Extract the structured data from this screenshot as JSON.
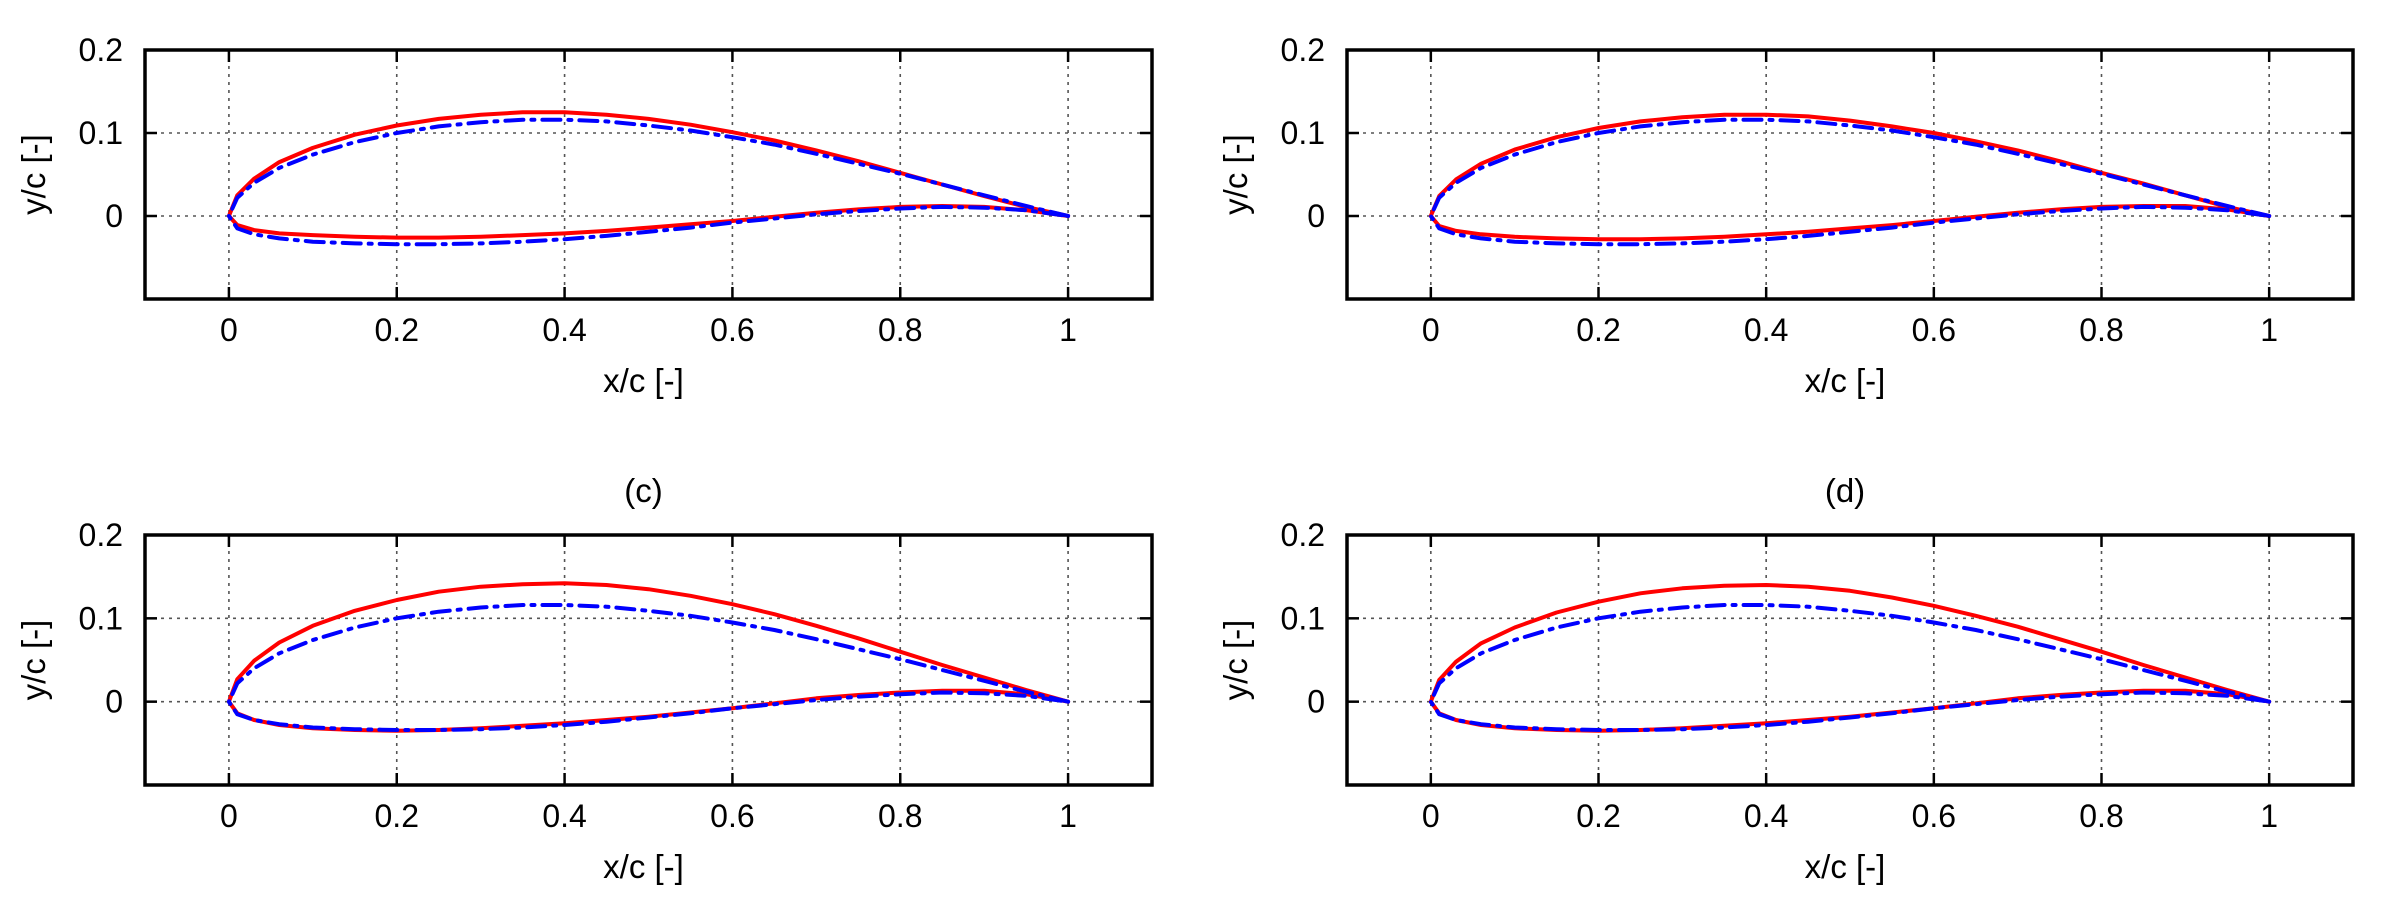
{
  "chart_data": [
    {
      "type": "line",
      "title": "",
      "xlabel": "x/c [-]",
      "ylabel": "y/c [-]",
      "xlim": [
        -0.1,
        1.1
      ],
      "ylim": [
        -0.1,
        0.2
      ],
      "xticks": [
        "0",
        "0.2",
        "0.4",
        "0.6",
        "0.8",
        "1"
      ],
      "yticks": [
        "0",
        "0.1",
        "0.2"
      ],
      "grid": true,
      "series": [
        {
          "color": "#ff0000",
          "style": "solid",
          "upper": {
            "x": [
              0,
              0.01,
              0.03,
              0.06,
              0.1,
              0.15,
              0.2,
              0.25,
              0.3,
              0.35,
              0.4,
              0.45,
              0.5,
              0.55,
              0.6,
              0.65,
              0.7,
              0.75,
              0.8,
              0.85,
              0.9,
              0.95,
              1.0
            ],
            "y": [
              0,
              0.025,
              0.045,
              0.065,
              0.082,
              0.098,
              0.109,
              0.117,
              0.122,
              0.125,
              0.125,
              0.122,
              0.117,
              0.11,
              0.101,
              0.091,
              0.079,
              0.066,
              0.052,
              0.038,
              0.024,
              0.011,
              0.0
            ]
          },
          "lower": {
            "x": [
              0,
              0.01,
              0.03,
              0.06,
              0.1,
              0.15,
              0.2,
              0.25,
              0.3,
              0.35,
              0.4,
              0.45,
              0.5,
              0.55,
              0.6,
              0.65,
              0.7,
              0.75,
              0.8,
              0.85,
              0.9,
              0.95,
              1.0
            ],
            "y": [
              0,
              -0.011,
              -0.017,
              -0.021,
              -0.023,
              -0.025,
              -0.026,
              -0.026,
              -0.025,
              -0.023,
              -0.021,
              -0.018,
              -0.014,
              -0.01,
              -0.006,
              -0.001,
              0.004,
              0.008,
              0.011,
              0.012,
              0.011,
              0.007,
              0.0
            ]
          }
        },
        {
          "color": "#0000ff",
          "style": "dashdot",
          "upper": {
            "x": [
              0,
              0.01,
              0.03,
              0.06,
              0.1,
              0.15,
              0.2,
              0.25,
              0.3,
              0.35,
              0.4,
              0.45,
              0.5,
              0.55,
              0.6,
              0.65,
              0.7,
              0.75,
              0.8,
              0.85,
              0.9,
              0.95,
              1.0
            ],
            "y": [
              0,
              0.022,
              0.04,
              0.058,
              0.074,
              0.089,
              0.1,
              0.108,
              0.113,
              0.116,
              0.116,
              0.114,
              0.109,
              0.103,
              0.095,
              0.086,
              0.075,
              0.063,
              0.051,
              0.038,
              0.025,
              0.012,
              0.0
            ]
          },
          "lower": {
            "x": [
              0,
              0.01,
              0.03,
              0.06,
              0.1,
              0.15,
              0.2,
              0.25,
              0.3,
              0.35,
              0.4,
              0.45,
              0.5,
              0.55,
              0.6,
              0.65,
              0.7,
              0.75,
              0.8,
              0.85,
              0.9,
              0.95,
              1.0
            ],
            "y": [
              0,
              -0.015,
              -0.022,
              -0.027,
              -0.031,
              -0.033,
              -0.034,
              -0.034,
              -0.033,
              -0.031,
              -0.028,
              -0.024,
              -0.019,
              -0.014,
              -0.008,
              -0.003,
              0.002,
              0.006,
              0.009,
              0.011,
              0.01,
              0.007,
              0.0
            ]
          }
        }
      ]
    },
    {
      "type": "line",
      "title": "",
      "xlabel": "x/c [-]",
      "ylabel": "y/c [-]",
      "xlim": [
        -0.1,
        1.1
      ],
      "ylim": [
        -0.1,
        0.2
      ],
      "xticks": [
        "0",
        "0.2",
        "0.4",
        "0.6",
        "0.8",
        "1"
      ],
      "yticks": [
        "0",
        "0.1",
        "0.2"
      ],
      "grid": true,
      "series": [
        {
          "color": "#ff0000",
          "style": "solid",
          "upper": {
            "x": [
              0,
              0.01,
              0.03,
              0.06,
              0.1,
              0.15,
              0.2,
              0.25,
              0.3,
              0.35,
              0.4,
              0.45,
              0.5,
              0.55,
              0.6,
              0.65,
              0.7,
              0.75,
              0.8,
              0.85,
              0.9,
              0.95,
              1.0
            ],
            "y": [
              0,
              0.024,
              0.044,
              0.063,
              0.08,
              0.095,
              0.106,
              0.114,
              0.119,
              0.122,
              0.122,
              0.12,
              0.115,
              0.108,
              0.1,
              0.09,
              0.079,
              0.066,
              0.052,
              0.039,
              0.025,
              0.011,
              0.0
            ]
          },
          "lower": {
            "x": [
              0,
              0.01,
              0.03,
              0.06,
              0.1,
              0.15,
              0.2,
              0.25,
              0.3,
              0.35,
              0.4,
              0.45,
              0.5,
              0.55,
              0.6,
              0.65,
              0.7,
              0.75,
              0.8,
              0.85,
              0.9,
              0.95,
              1.0
            ],
            "y": [
              0,
              -0.012,
              -0.018,
              -0.022,
              -0.025,
              -0.027,
              -0.028,
              -0.028,
              -0.027,
              -0.025,
              -0.022,
              -0.019,
              -0.015,
              -0.011,
              -0.006,
              -0.001,
              0.004,
              0.008,
              0.011,
              0.012,
              0.012,
              0.008,
              0.0
            ]
          }
        },
        {
          "color": "#0000ff",
          "style": "dashdot",
          "upper": {
            "x": [
              0,
              0.01,
              0.03,
              0.06,
              0.1,
              0.15,
              0.2,
              0.25,
              0.3,
              0.35,
              0.4,
              0.45,
              0.5,
              0.55,
              0.6,
              0.65,
              0.7,
              0.75,
              0.8,
              0.85,
              0.9,
              0.95,
              1.0
            ],
            "y": [
              0,
              0.022,
              0.04,
              0.058,
              0.074,
              0.089,
              0.1,
              0.108,
              0.113,
              0.116,
              0.116,
              0.114,
              0.109,
              0.103,
              0.095,
              0.086,
              0.075,
              0.063,
              0.051,
              0.038,
              0.025,
              0.012,
              0.0
            ]
          },
          "lower": {
            "x": [
              0,
              0.01,
              0.03,
              0.06,
              0.1,
              0.15,
              0.2,
              0.25,
              0.3,
              0.35,
              0.4,
              0.45,
              0.5,
              0.55,
              0.6,
              0.65,
              0.7,
              0.75,
              0.8,
              0.85,
              0.9,
              0.95,
              1.0
            ],
            "y": [
              0,
              -0.015,
              -0.022,
              -0.027,
              -0.031,
              -0.033,
              -0.034,
              -0.034,
              -0.033,
              -0.031,
              -0.028,
              -0.024,
              -0.019,
              -0.014,
              -0.008,
              -0.003,
              0.002,
              0.006,
              0.009,
              0.011,
              0.01,
              0.007,
              0.0
            ]
          }
        }
      ]
    },
    {
      "type": "line",
      "title": "(c)",
      "xlabel": "x/c [-]",
      "ylabel": "y/c [-]",
      "xlim": [
        -0.1,
        1.1
      ],
      "ylim": [
        -0.1,
        0.2
      ],
      "xticks": [
        "0",
        "0.2",
        "0.4",
        "0.6",
        "0.8",
        "1"
      ],
      "yticks": [
        "0",
        "0.1",
        "0.2"
      ],
      "grid": true,
      "series": [
        {
          "color": "#ff0000",
          "style": "solid",
          "upper": {
            "x": [
              0,
              0.01,
              0.03,
              0.06,
              0.1,
              0.15,
              0.2,
              0.25,
              0.3,
              0.35,
              0.4,
              0.45,
              0.5,
              0.55,
              0.6,
              0.65,
              0.7,
              0.75,
              0.8,
              0.85,
              0.9,
              0.95,
              1.0
            ],
            "y": [
              0,
              0.027,
              0.049,
              0.071,
              0.091,
              0.109,
              0.122,
              0.132,
              0.138,
              0.141,
              0.142,
              0.14,
              0.135,
              0.127,
              0.117,
              0.105,
              0.091,
              0.076,
              0.06,
              0.044,
              0.029,
              0.014,
              0.0
            ]
          },
          "lower": {
            "x": [
              0,
              0.01,
              0.03,
              0.06,
              0.1,
              0.15,
              0.2,
              0.25,
              0.3,
              0.35,
              0.4,
              0.45,
              0.5,
              0.55,
              0.6,
              0.65,
              0.7,
              0.75,
              0.8,
              0.85,
              0.9,
              0.95,
              1.0
            ],
            "y": [
              0,
              -0.014,
              -0.022,
              -0.028,
              -0.032,
              -0.034,
              -0.035,
              -0.034,
              -0.032,
              -0.029,
              -0.026,
              -0.022,
              -0.018,
              -0.013,
              -0.008,
              -0.002,
              0.004,
              0.008,
              0.011,
              0.013,
              0.013,
              0.009,
              0.0
            ]
          }
        },
        {
          "color": "#0000ff",
          "style": "dashdot",
          "upper": {
            "x": [
              0,
              0.01,
              0.03,
              0.06,
              0.1,
              0.15,
              0.2,
              0.25,
              0.3,
              0.35,
              0.4,
              0.45,
              0.5,
              0.55,
              0.6,
              0.65,
              0.7,
              0.75,
              0.8,
              0.85,
              0.9,
              0.95,
              1.0
            ],
            "y": [
              0,
              0.022,
              0.04,
              0.058,
              0.074,
              0.089,
              0.1,
              0.108,
              0.113,
              0.116,
              0.116,
              0.114,
              0.109,
              0.103,
              0.095,
              0.086,
              0.075,
              0.063,
              0.051,
              0.038,
              0.025,
              0.012,
              0.0
            ]
          },
          "lower": {
            "x": [
              0,
              0.01,
              0.03,
              0.06,
              0.1,
              0.15,
              0.2,
              0.25,
              0.3,
              0.35,
              0.4,
              0.45,
              0.5,
              0.55,
              0.6,
              0.65,
              0.7,
              0.75,
              0.8,
              0.85,
              0.9,
              0.95,
              1.0
            ],
            "y": [
              0,
              -0.015,
              -0.022,
              -0.027,
              -0.031,
              -0.033,
              -0.034,
              -0.034,
              -0.033,
              -0.031,
              -0.028,
              -0.024,
              -0.019,
              -0.014,
              -0.008,
              -0.003,
              0.002,
              0.006,
              0.009,
              0.011,
              0.01,
              0.007,
              0.0
            ]
          }
        }
      ]
    },
    {
      "type": "line",
      "title": "(d)",
      "xlabel": "x/c [-]",
      "ylabel": "y/c [-]",
      "xlim": [
        -0.1,
        1.1
      ],
      "ylim": [
        -0.1,
        0.2
      ],
      "xticks": [
        "0",
        "0.2",
        "0.4",
        "0.6",
        "0.8",
        "1"
      ],
      "yticks": [
        "0",
        "0.1",
        "0.2"
      ],
      "grid": true,
      "series": [
        {
          "color": "#ff0000",
          "style": "solid",
          "upper": {
            "x": [
              0,
              0.01,
              0.03,
              0.06,
              0.1,
              0.15,
              0.2,
              0.25,
              0.3,
              0.35,
              0.4,
              0.45,
              0.5,
              0.55,
              0.6,
              0.65,
              0.7,
              0.75,
              0.8,
              0.85,
              0.9,
              0.95,
              1.0
            ],
            "y": [
              0,
              0.026,
              0.048,
              0.07,
              0.089,
              0.107,
              0.12,
              0.13,
              0.136,
              0.139,
              0.14,
              0.138,
              0.133,
              0.125,
              0.115,
              0.103,
              0.09,
              0.075,
              0.06,
              0.044,
              0.029,
              0.014,
              0.0
            ]
          },
          "lower": {
            "x": [
              0,
              0.01,
              0.03,
              0.06,
              0.1,
              0.15,
              0.2,
              0.25,
              0.3,
              0.35,
              0.4,
              0.45,
              0.5,
              0.55,
              0.6,
              0.65,
              0.7,
              0.75,
              0.8,
              0.85,
              0.9,
              0.95,
              1.0
            ],
            "y": [
              0,
              -0.014,
              -0.022,
              -0.028,
              -0.032,
              -0.034,
              -0.035,
              -0.034,
              -0.032,
              -0.029,
              -0.026,
              -0.022,
              -0.018,
              -0.013,
              -0.008,
              -0.002,
              0.004,
              0.008,
              0.011,
              0.013,
              0.013,
              0.009,
              0.0
            ]
          }
        },
        {
          "color": "#0000ff",
          "style": "dashdot",
          "upper": {
            "x": [
              0,
              0.01,
              0.03,
              0.06,
              0.1,
              0.15,
              0.2,
              0.25,
              0.3,
              0.35,
              0.4,
              0.45,
              0.5,
              0.55,
              0.6,
              0.65,
              0.7,
              0.75,
              0.8,
              0.85,
              0.9,
              0.95,
              1.0
            ],
            "y": [
              0,
              0.022,
              0.04,
              0.058,
              0.074,
              0.089,
              0.1,
              0.108,
              0.113,
              0.116,
              0.116,
              0.114,
              0.109,
              0.103,
              0.095,
              0.086,
              0.075,
              0.063,
              0.051,
              0.038,
              0.025,
              0.012,
              0.0
            ]
          },
          "lower": {
            "x": [
              0,
              0.01,
              0.03,
              0.06,
              0.1,
              0.15,
              0.2,
              0.25,
              0.3,
              0.35,
              0.4,
              0.45,
              0.5,
              0.55,
              0.6,
              0.65,
              0.7,
              0.75,
              0.8,
              0.85,
              0.9,
              0.95,
              1.0
            ],
            "y": [
              0,
              -0.015,
              -0.022,
              -0.027,
              -0.031,
              -0.033,
              -0.034,
              -0.034,
              -0.033,
              -0.031,
              -0.028,
              -0.024,
              -0.019,
              -0.014,
              -0.008,
              -0.003,
              0.002,
              0.006,
              0.009,
              0.011,
              0.01,
              0.007,
              0.0
            ]
          }
        }
      ]
    }
  ]
}
